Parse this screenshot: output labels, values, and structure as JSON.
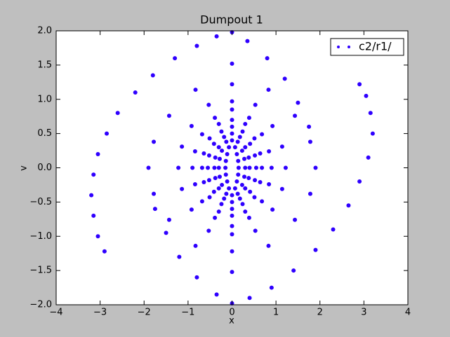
{
  "chart_data": {
    "type": "scatter",
    "title": "Dumpout 1",
    "x_label": "x",
    "y_label": "v",
    "legend_position": "upper right",
    "grid": false,
    "xlim": [
      -4,
      4
    ],
    "ylim": [
      -2,
      2
    ],
    "xticks": [
      {
        "value": -4,
        "label": "−4"
      },
      {
        "value": -3,
        "label": "−3"
      },
      {
        "value": -2,
        "label": "−2"
      },
      {
        "value": -1,
        "label": "−1"
      },
      0,
      1,
      2,
      3,
      4
    ],
    "yticks": [
      {
        "value": -2,
        "label": "−2.0"
      },
      {
        "value": -1.5,
        "label": "−1.5"
      },
      {
        "value": -1,
        "label": "−1.0"
      },
      {
        "value": -0.5,
        "label": "−0.5"
      },
      {
        "value": 0,
        "label": "0.0"
      },
      0.5,
      {
        "value": 1,
        "label": "1.0"
      },
      1.5,
      {
        "value": 2,
        "label": "2.0"
      }
    ],
    "x": [
      0,
      0.83,
      1.43,
      1.78,
      1.9,
      1.78,
      1.43,
      0.83,
      0,
      -0.83,
      -1.43,
      -1.78,
      -1.9,
      -1.78,
      -1.43,
      -0.83,
      0,
      0.53,
      0.92,
      1.14,
      1.22,
      1.14,
      0.92,
      0.53,
      0,
      -0.53,
      -0.92,
      -1.14,
      -1.22,
      -1.14,
      -0.92,
      -0.53,
      0,
      0.39,
      0.68,
      0.84,
      0.9,
      0.84,
      0.68,
      0.39,
      0,
      -0.39,
      -0.68,
      -0.84,
      -0.9,
      -0.84,
      -0.68,
      -0.39,
      0,
      0.3,
      0.51,
      0.64,
      0.68,
      0.64,
      0.51,
      0.3,
      0,
      -0.3,
      -0.51,
      -0.64,
      -0.68,
      -0.64,
      -0.51,
      -0.3,
      0,
      0.24,
      0.41,
      0.52,
      0.55,
      0.52,
      0.41,
      0.24,
      0,
      -0.24,
      -0.41,
      -0.52,
      -0.55,
      -0.52,
      -0.41,
      -0.24,
      0,
      0.18,
      0.3,
      0.38,
      0.4,
      0.38,
      0.3,
      0.18,
      0,
      -0.18,
      -0.3,
      -0.38,
      -0.4,
      -0.38,
      -0.3,
      -0.18,
      0,
      0.13,
      0.23,
      0.28,
      0.3,
      0.28,
      0.23,
      0.13,
      0,
      -0.13,
      -0.23,
      -0.28,
      -0.3,
      -0.28,
      -0.23,
      -0.13,
      0,
      0.07,
      0.11,
      0.14,
      0.15,
      0.14,
      0.11,
      0.07,
      0,
      -0.07,
      -0.11,
      -0.14,
      -0.15,
      -0.14,
      -0.11,
      -0.07,
      -2.9,
      -3.05,
      -3.15,
      -3.2,
      -3.15,
      -3.05,
      -2.85,
      -2.6,
      -2.2,
      -1.8,
      -1.3,
      -0.8,
      -0.35,
      0,
      0.35,
      0.8,
      1.2,
      1.5,
      1.75,
      0,
      -0.35,
      -0.8,
      -1.2,
      -1.5,
      -1.75,
      0.4,
      0.9,
      1.4,
      1.9,
      2.3,
      2.65,
      2.9,
      3.1,
      3.2,
      3.15,
      3.05,
      2.9
    ],
    "series": [
      {
        "name": "c2/r1/",
        "color": "#2f00ff",
        "values": [
          -1.52,
          -1.14,
          -0.76,
          -0.38,
          0,
          0.38,
          0.76,
          1.14,
          1.52,
          -1.14,
          -0.76,
          -0.38,
          0,
          0.38,
          0.76,
          1.14,
          -1.22,
          -0.92,
          -0.61,
          -0.31,
          0,
          0.31,
          0.61,
          0.92,
          1.22,
          -0.92,
          -0.61,
          -0.31,
          0,
          0.31,
          0.61,
          0.92,
          -0.97,
          -0.73,
          -0.49,
          -0.24,
          0,
          0.24,
          0.49,
          0.73,
          0.97,
          -0.73,
          -0.49,
          -0.24,
          0,
          0.24,
          0.49,
          0.73,
          -0.85,
          -0.64,
          -0.43,
          -0.21,
          0,
          0.21,
          0.43,
          0.64,
          0.85,
          -0.64,
          -0.43,
          -0.21,
          0,
          0.21,
          0.43,
          0.64,
          -0.7,
          -0.53,
          -0.35,
          -0.18,
          0,
          0.18,
          0.35,
          0.53,
          0.7,
          -0.53,
          -0.35,
          -0.18,
          0,
          0.18,
          0.35,
          0.53,
          -0.6,
          -0.45,
          -0.3,
          -0.15,
          0,
          0.15,
          0.3,
          0.45,
          0.6,
          -0.45,
          -0.3,
          -0.15,
          0,
          0.15,
          0.3,
          0.45,
          -0.5,
          -0.38,
          -0.25,
          -0.13,
          0,
          0.13,
          0.25,
          0.38,
          0.5,
          -0.38,
          -0.25,
          -0.13,
          0,
          0.13,
          0.25,
          0.38,
          -0.4,
          -0.3,
          -0.2,
          -0.1,
          0,
          0.1,
          0.2,
          0.3,
          0.4,
          -0.3,
          -0.2,
          -0.1,
          0,
          0.1,
          0.2,
          0.3,
          -1.22,
          -1,
          -0.7,
          -0.4,
          -0.1,
          0.2,
          0.5,
          0.8,
          1.1,
          1.35,
          1.6,
          1.78,
          1.92,
          1.98,
          1.85,
          1.6,
          1.3,
          0.95,
          0.6,
          -1.98,
          -1.85,
          -1.6,
          -1.3,
          -0.95,
          -0.6,
          -1.9,
          -1.75,
          -1.5,
          -1.2,
          -0.9,
          -0.55,
          -0.2,
          0.15,
          0.5,
          0.8,
          1.05,
          1.22
        ]
      }
    ]
  }
}
